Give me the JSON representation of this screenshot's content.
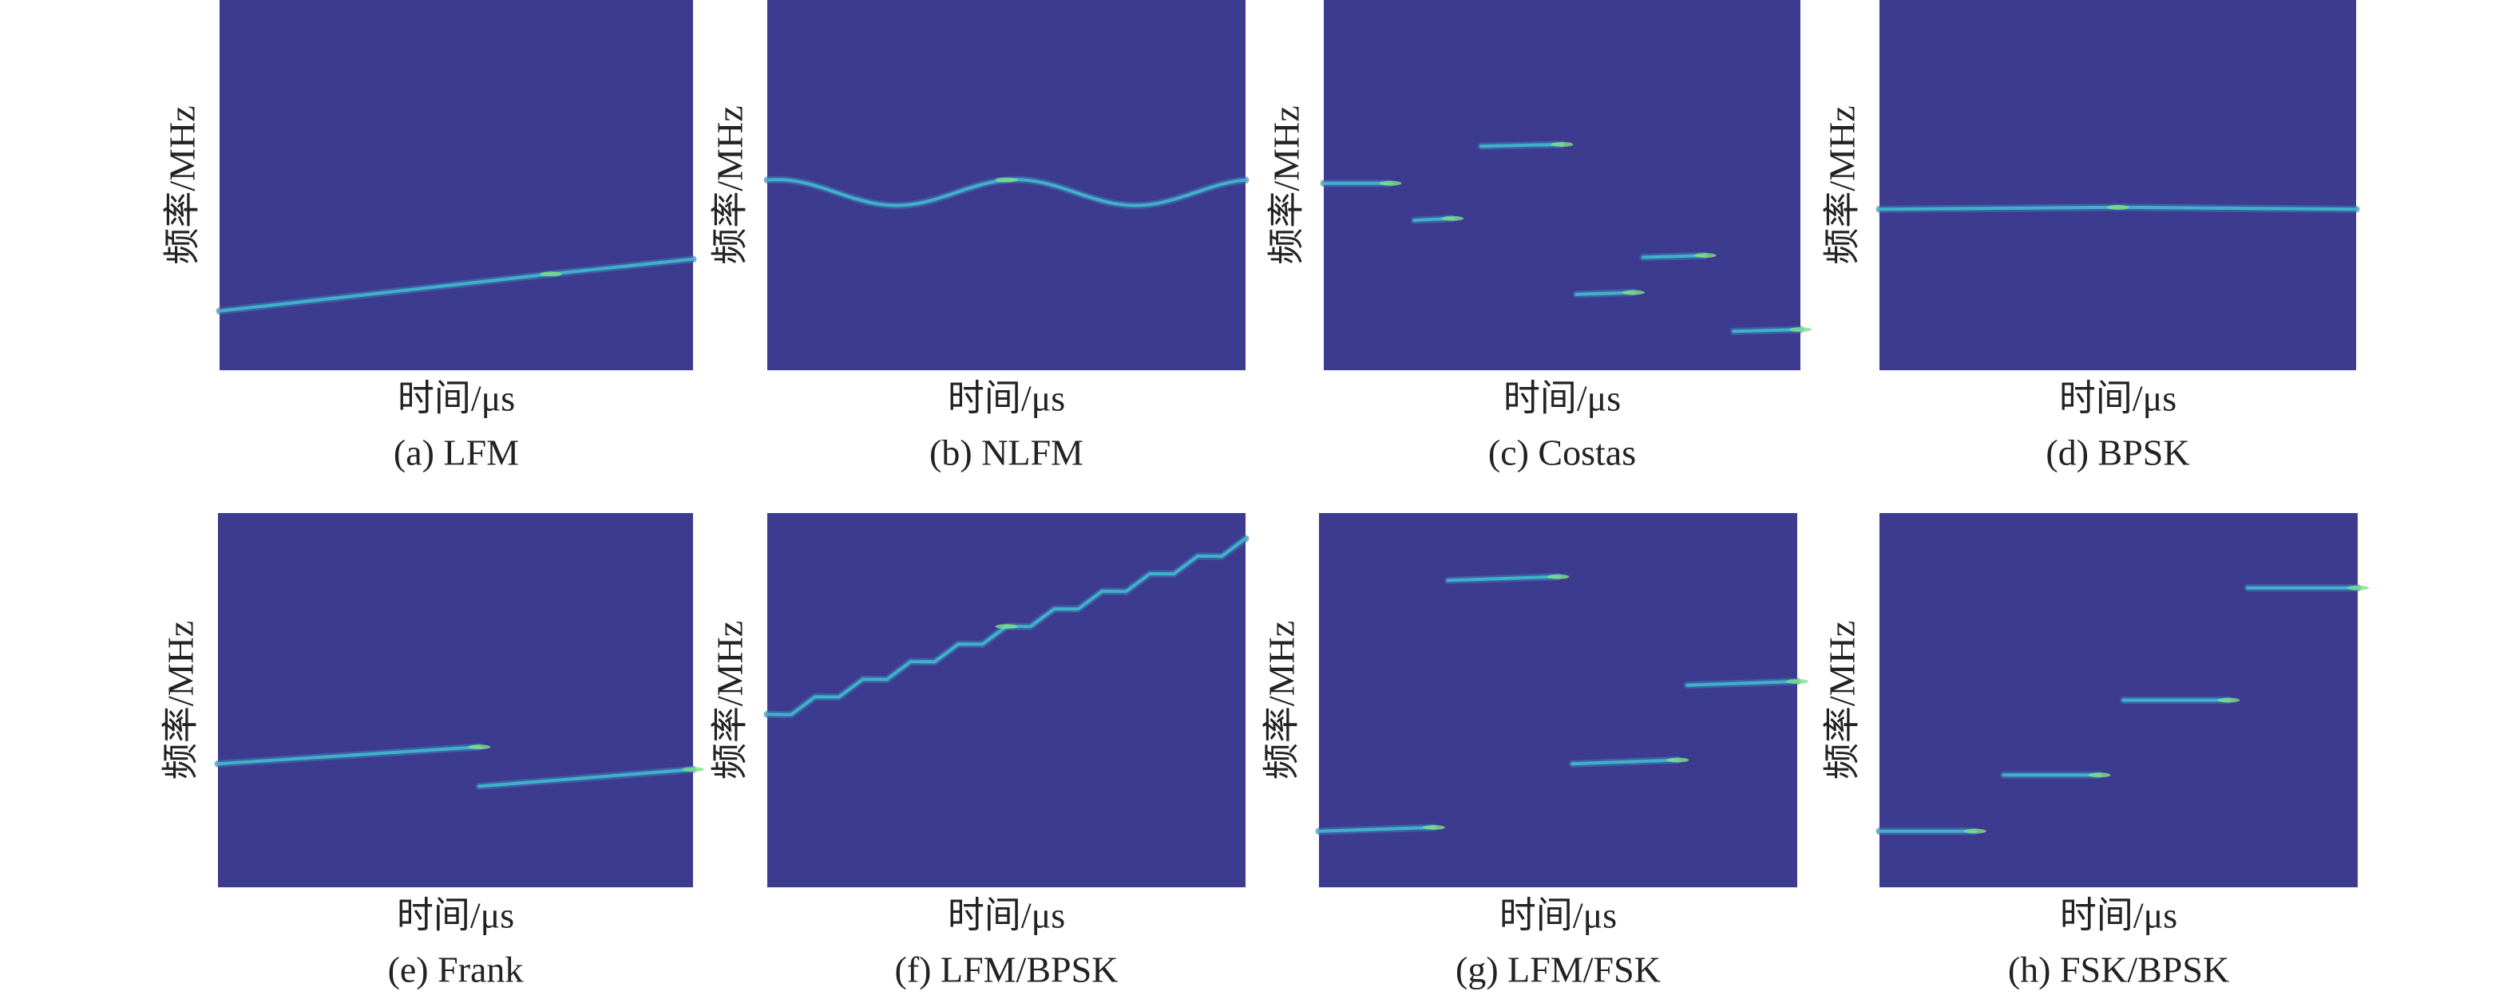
{
  "panels": [
    {
      "ylabel": "频率/MHz",
      "xlabel": "时间/μs",
      "caption": "(a) LFM"
    },
    {
      "ylabel": "频率/MHz",
      "xlabel": "时间/μs",
      "caption": "(b) NLFM"
    },
    {
      "ylabel": "频率/MHz",
      "xlabel": "时间/μs",
      "caption": "(c) Costas"
    },
    {
      "ylabel": "频率/MHz",
      "xlabel": "时间/μs",
      "caption": "(d) BPSK"
    },
    {
      "ylabel": "频率/MHz",
      "xlabel": "时间/μs",
      "caption": "(e) Frank"
    },
    {
      "ylabel": "频率/MHz",
      "xlabel": "时间/μs",
      "caption": "(f) LFM/BPSK"
    },
    {
      "ylabel": "频率/MHz",
      "xlabel": "时间/μs",
      "caption": "(g) LFM/FSK"
    },
    {
      "ylabel": "频率/MHz",
      "xlabel": "时间/μs",
      "caption": "(h) FSK/BPSK"
    }
  ]
}
